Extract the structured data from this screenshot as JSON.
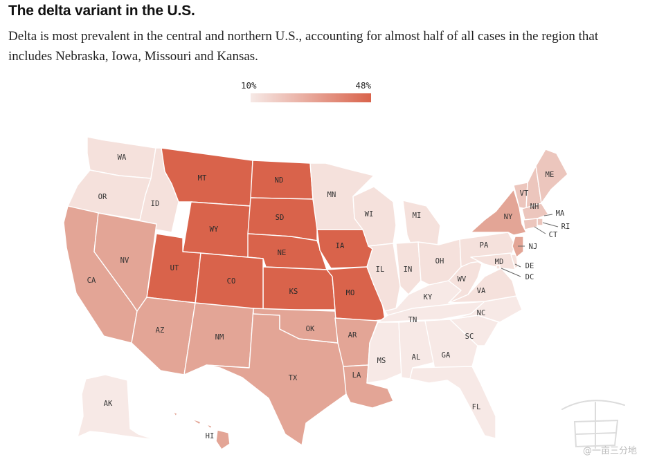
{
  "title": "The delta variant in the U.S.",
  "subtitle": "Delta is most prevalent in the central and northern U.S., accounting for almost half of all cases in the region that includes Nebraska, Iowa, Missouri and Kansas.",
  "legend": {
    "min_label": "10%",
    "max_label": "48%",
    "min_value": 10,
    "max_value": 48,
    "color_low": "#f6e9e6",
    "color_high": "#d9634b"
  },
  "colors": {
    "high": "#d9634b",
    "mid": "#e3a596",
    "low_mid": "#ecc6bd",
    "low": "#f5e1dc",
    "lowest": "#f7e9e6"
  },
  "watermark": "@一亩三分地",
  "states": [
    {
      "abbr": "WA",
      "level": "low"
    },
    {
      "abbr": "OR",
      "level": "low"
    },
    {
      "abbr": "ID",
      "level": "low"
    },
    {
      "abbr": "MT",
      "level": "high"
    },
    {
      "abbr": "WY",
      "level": "high"
    },
    {
      "abbr": "ND",
      "level": "high"
    },
    {
      "abbr": "SD",
      "level": "high"
    },
    {
      "abbr": "NE",
      "level": "high"
    },
    {
      "abbr": "KS",
      "level": "high"
    },
    {
      "abbr": "IA",
      "level": "high"
    },
    {
      "abbr": "MO",
      "level": "high"
    },
    {
      "abbr": "UT",
      "level": "high"
    },
    {
      "abbr": "CO",
      "level": "high"
    },
    {
      "abbr": "CA",
      "level": "mid"
    },
    {
      "abbr": "NV",
      "level": "mid"
    },
    {
      "abbr": "AZ",
      "level": "mid"
    },
    {
      "abbr": "NM",
      "level": "mid"
    },
    {
      "abbr": "TX",
      "level": "mid"
    },
    {
      "abbr": "OK",
      "level": "mid"
    },
    {
      "abbr": "AR",
      "level": "mid"
    },
    {
      "abbr": "LA",
      "level": "mid"
    },
    {
      "abbr": "HI",
      "level": "mid"
    },
    {
      "abbr": "NY",
      "level": "mid"
    },
    {
      "abbr": "NJ",
      "level": "mid"
    },
    {
      "abbr": "MN",
      "level": "low"
    },
    {
      "abbr": "WI",
      "level": "low"
    },
    {
      "abbr": "MI",
      "level": "low"
    },
    {
      "abbr": "IL",
      "level": "low"
    },
    {
      "abbr": "IN",
      "level": "low"
    },
    {
      "abbr": "OH",
      "level": "low"
    },
    {
      "abbr": "KY",
      "level": "lowest"
    },
    {
      "abbr": "TN",
      "level": "lowest"
    },
    {
      "abbr": "MS",
      "level": "lowest"
    },
    {
      "abbr": "AL",
      "level": "lowest"
    },
    {
      "abbr": "GA",
      "level": "lowest"
    },
    {
      "abbr": "FL",
      "level": "lowest"
    },
    {
      "abbr": "SC",
      "level": "lowest"
    },
    {
      "abbr": "NC",
      "level": "lowest"
    },
    {
      "abbr": "VA",
      "level": "low"
    },
    {
      "abbr": "WV",
      "level": "low"
    },
    {
      "abbr": "PA",
      "level": "low"
    },
    {
      "abbr": "MD",
      "level": "low"
    },
    {
      "abbr": "DE",
      "level": "low"
    },
    {
      "abbr": "DC",
      "level": "low"
    },
    {
      "abbr": "ME",
      "level": "low_mid"
    },
    {
      "abbr": "VT",
      "level": "low_mid"
    },
    {
      "abbr": "NH",
      "level": "low_mid"
    },
    {
      "abbr": "MA",
      "level": "low_mid"
    },
    {
      "abbr": "RI",
      "level": "low_mid"
    },
    {
      "abbr": "CT",
      "level": "low_mid"
    },
    {
      "abbr": "AK",
      "level": "lowest"
    }
  ]
}
